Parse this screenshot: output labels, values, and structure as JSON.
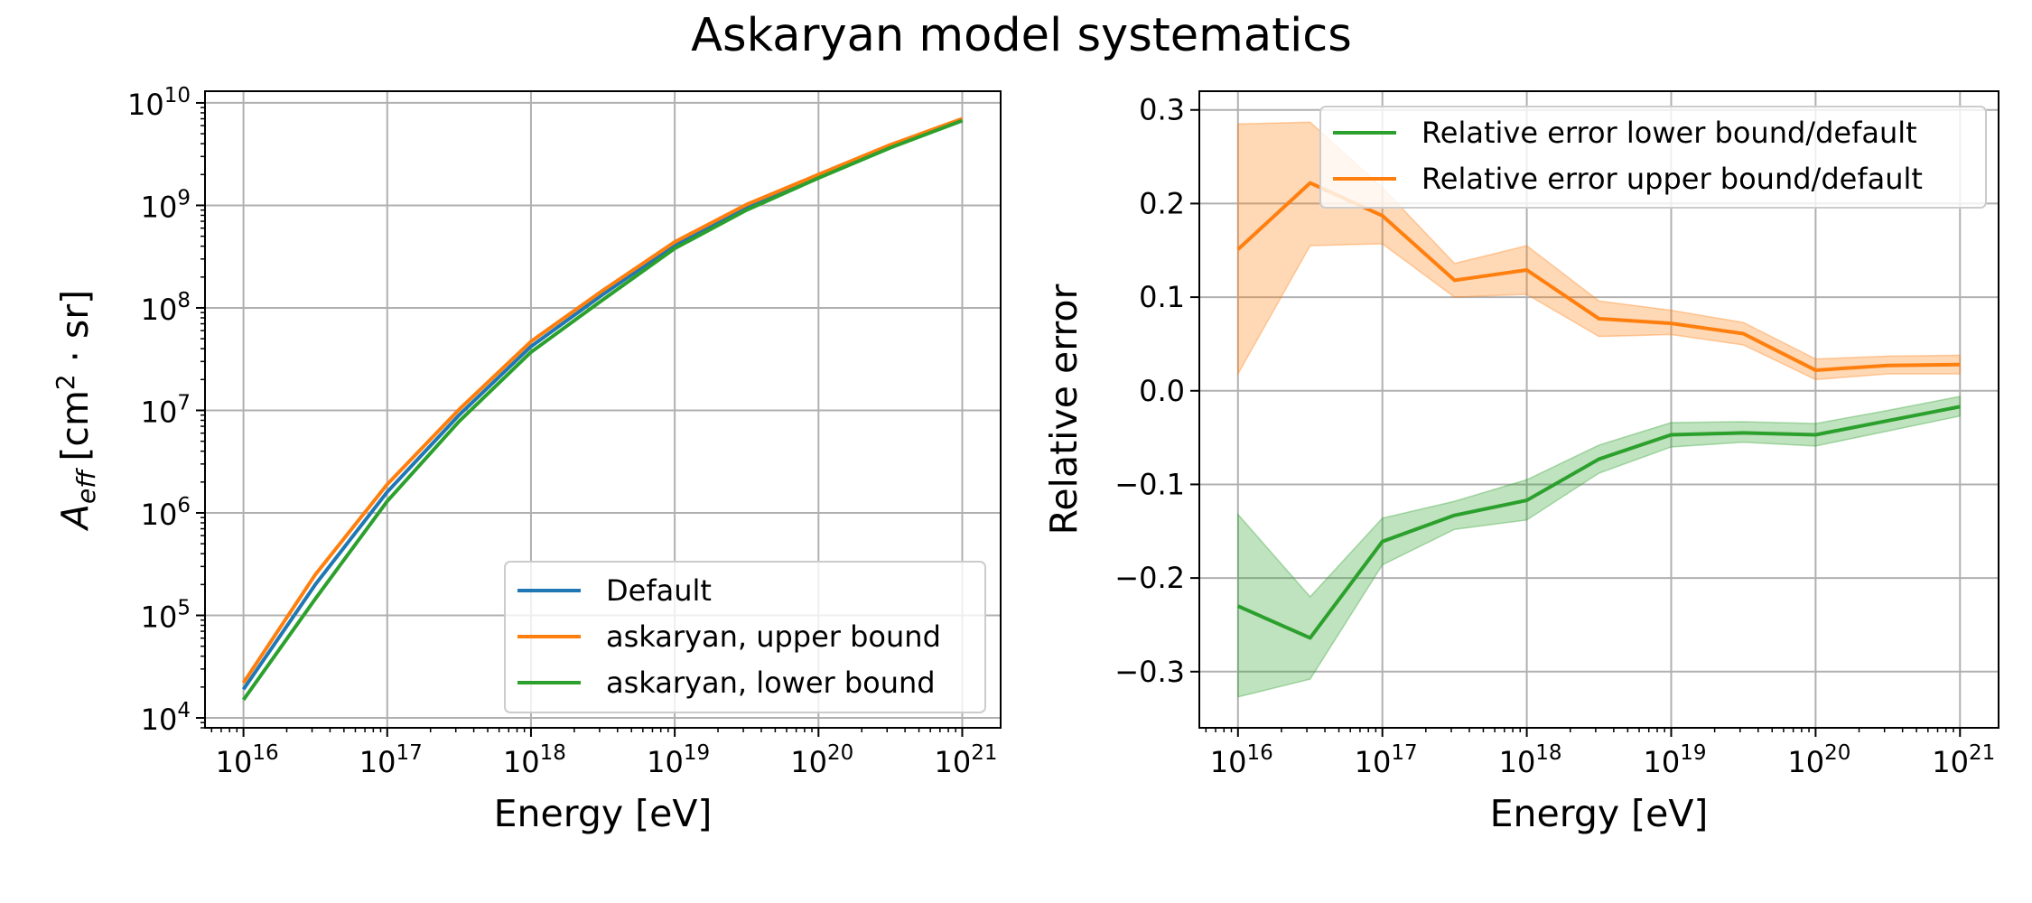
{
  "title": "Askaryan model systematics",
  "chart_data": [
    {
      "type": "line",
      "xscale": "log",
      "yscale": "log",
      "xlabel": "Energy [eV]",
      "ylabel_main": "A",
      "ylabel_sub": "eff",
      "ylabel_unit_pre": "[cm",
      "ylabel_unit_exp": "2",
      "ylabel_unit_post": " · sr]",
      "xlim": [
        5400000000000000.0,
        1.85e+21
      ],
      "ylim": [
        8000.0,
        13000000000.0
      ],
      "xticks": [
        {
          "base": "10",
          "exp": "16",
          "value": 1e+16
        },
        {
          "base": "10",
          "exp": "17",
          "value": 1e+17
        },
        {
          "base": "10",
          "exp": "18",
          "value": 1e+18
        },
        {
          "base": "10",
          "exp": "19",
          "value": 1e+19
        },
        {
          "base": "10",
          "exp": "20",
          "value": 1e+20
        },
        {
          "base": "10",
          "exp": "21",
          "value": 1e+21
        }
      ],
      "yticks": [
        {
          "base": "10",
          "exp": "4",
          "value": 10000.0
        },
        {
          "base": "10",
          "exp": "5",
          "value": 100000.0
        },
        {
          "base": "10",
          "exp": "6",
          "value": 1000000.0
        },
        {
          "base": "10",
          "exp": "7",
          "value": 10000000.0
        },
        {
          "base": "10",
          "exp": "8",
          "value": 100000000.0
        },
        {
          "base": "10",
          "exp": "9",
          "value": 1000000000.0
        },
        {
          "base": "10",
          "exp": "10",
          "value": 10000000000.0
        }
      ],
      "grid": true,
      "legend_position": "lower right",
      "x": [
        1e+16,
        3.16e+16,
        1e+17,
        3.16e+17,
        1e+18,
        3.16e+18,
        1e+19,
        3.16e+19,
        1e+20,
        3.16e+20,
        1e+21
      ],
      "series": [
        {
          "name": "Default",
          "color": "#1f77b4",
          "values": [
            19000.0,
            200000.0,
            1600000.0,
            9000000.0,
            42000000.0,
            135000000.0,
            410000000.0,
            950000000.0,
            1950000000.0,
            3800000000.0,
            6800000000.0
          ]
        },
        {
          "name": "askaryan, upper bound",
          "color": "#ff7f0e",
          "values": [
            22000.0,
            250000.0,
            1900000.0,
            10200000.0,
            47000000.0,
            148000000.0,
            440000000.0,
            1020000000.0,
            2000000000.0,
            3900000000.0,
            7000000000.0
          ]
        },
        {
          "name": "askaryan, lower bound",
          "color": "#2ca02c",
          "values": [
            15000.0,
            145000.0,
            1300000.0,
            7800000.0,
            37000000.0,
            120000000.0,
            380000000.0,
            900000000.0,
            1850000000.0,
            3650000000.0,
            6700000000.0
          ]
        }
      ]
    },
    {
      "type": "line",
      "xscale": "log",
      "yscale": "linear",
      "xlabel": "Energy [eV]",
      "ylabel": "Relative error",
      "xlim": [
        5400000000000000.0,
        1.85e+21
      ],
      "ylim": [
        -0.36,
        0.32
      ],
      "xticks": [
        {
          "base": "10",
          "exp": "16",
          "value": 1e+16
        },
        {
          "base": "10",
          "exp": "17",
          "value": 1e+17
        },
        {
          "base": "10",
          "exp": "18",
          "value": 1e+18
        },
        {
          "base": "10",
          "exp": "19",
          "value": 1e+19
        },
        {
          "base": "10",
          "exp": "20",
          "value": 1e+20
        },
        {
          "base": "10",
          "exp": "21",
          "value": 1e+21
        }
      ],
      "yticks": [
        {
          "label": "0.3",
          "value": 0.3
        },
        {
          "label": "0.2",
          "value": 0.2
        },
        {
          "label": "0.1",
          "value": 0.1
        },
        {
          "label": "0.0",
          "value": 0.0
        },
        {
          "label": "−0.1",
          "value": -0.1
        },
        {
          "label": "−0.2",
          "value": -0.2
        },
        {
          "label": "−0.3",
          "value": -0.3
        }
      ],
      "grid": true,
      "legend_position": "upper right",
      "x": [
        1e+16,
        3.16e+16,
        1e+17,
        3.16e+17,
        1e+18,
        3.16e+18,
        1e+19,
        3.16e+19,
        1e+20,
        3.16e+20,
        1e+21
      ],
      "series": [
        {
          "name": "Relative error lower bound/default",
          "color": "#2ca02c",
          "values": [
            -0.23,
            -0.264,
            -0.161,
            -0.133,
            -0.117,
            -0.073,
            -0.047,
            -0.045,
            -0.047,
            -0.032,
            -0.017
          ],
          "band_low": [
            -0.327,
            -0.308,
            -0.186,
            -0.148,
            -0.138,
            -0.088,
            -0.06,
            -0.055,
            -0.059,
            -0.043,
            -0.027
          ],
          "band_high": [
            -0.132,
            -0.22,
            -0.136,
            -0.118,
            -0.095,
            -0.058,
            -0.034,
            -0.033,
            -0.035,
            -0.021,
            -0.006
          ]
        },
        {
          "name": "Relative error upper bound/default",
          "color": "#ff7f0e",
          "values": [
            0.151,
            0.222,
            0.187,
            0.118,
            0.129,
            0.077,
            0.072,
            0.061,
            0.022,
            0.027,
            0.028
          ],
          "band_low": [
            0.018,
            0.155,
            0.157,
            0.1,
            0.103,
            0.058,
            0.06,
            0.049,
            0.012,
            0.018,
            0.018
          ],
          "band_high": [
            0.285,
            0.287,
            0.217,
            0.136,
            0.155,
            0.096,
            0.086,
            0.073,
            0.034,
            0.037,
            0.038
          ]
        }
      ]
    }
  ]
}
